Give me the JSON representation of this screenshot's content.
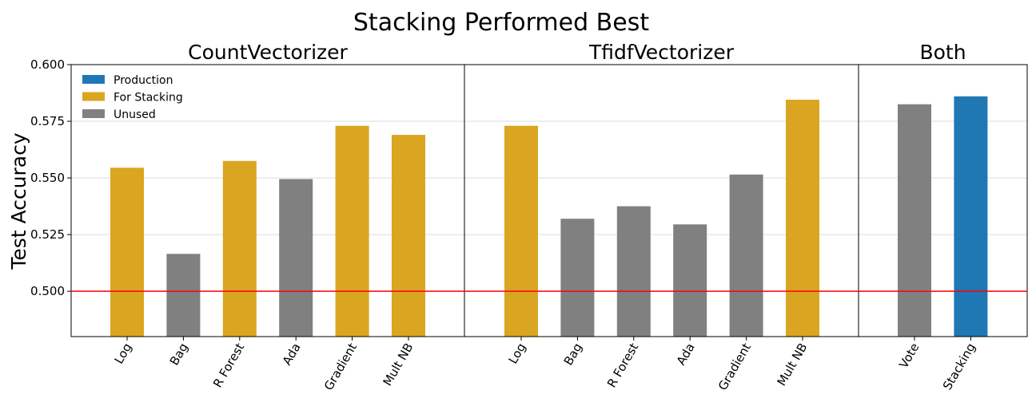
{
  "chart_data": {
    "type": "bar",
    "title": "Stacking Performed Best",
    "ylabel": "Test Accuracy",
    "ylim": [
      0.48,
      0.6
    ],
    "yticks": [
      "0.500",
      "0.525",
      "0.550",
      "0.575",
      "0.600"
    ],
    "grid": true,
    "legend_position": "top-left",
    "reference_line": {
      "y": 0.5,
      "color": "#ff0000"
    },
    "colors": {
      "Production": "#1f77b4",
      "For Stacking": "#daa520",
      "Unused": "#808080"
    },
    "legend": [
      "Production",
      "For Stacking",
      "Unused"
    ],
    "groups": [
      {
        "name": "CountVectorizer",
        "categories": [
          "Log",
          "Bag",
          "R Forest",
          "Ada",
          "Gradient",
          "Mult NB"
        ],
        "values": [
          0.5545,
          0.5165,
          0.5575,
          0.5495,
          0.573,
          0.569
        ],
        "status": [
          "For Stacking",
          "Unused",
          "For Stacking",
          "Unused",
          "For Stacking",
          "For Stacking"
        ]
      },
      {
        "name": "TfidfVectorizer",
        "categories": [
          "Log",
          "Bag",
          "R Forest",
          "Ada",
          "Gradient",
          "Mult NB"
        ],
        "values": [
          0.573,
          0.532,
          0.5375,
          0.5295,
          0.5515,
          0.5845
        ],
        "status": [
          "For Stacking",
          "Unused",
          "Unused",
          "Unused",
          "Unused",
          "For Stacking"
        ]
      },
      {
        "name": "Both",
        "categories": [
          "Vote",
          "Stacking"
        ],
        "values": [
          0.5825,
          0.586
        ],
        "status": [
          "Unused",
          "Production"
        ]
      }
    ]
  }
}
